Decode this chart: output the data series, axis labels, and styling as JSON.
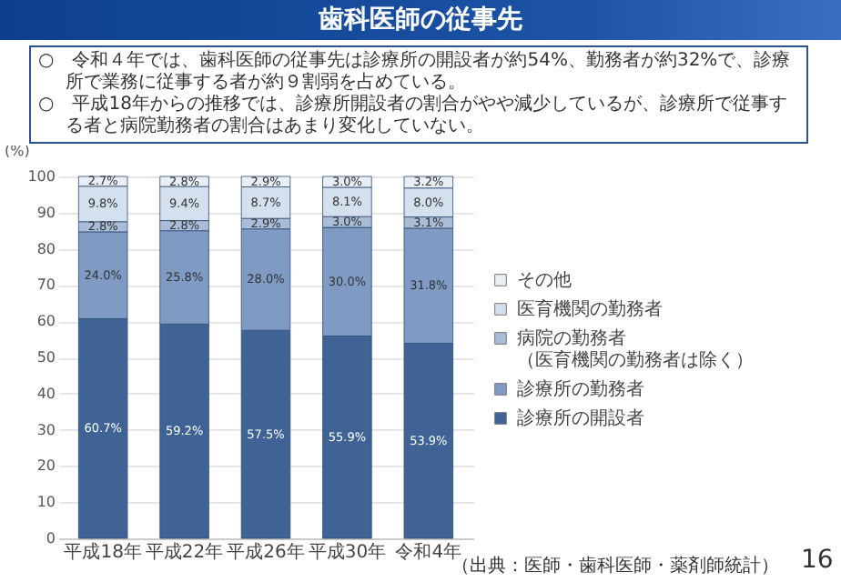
{
  "chart_data": {
    "type": "bar",
    "title": "歯科医師の従事先",
    "stacked": true,
    "legend": "right",
    "grid": "y",
    "ylabel": "(%)",
    "ylim": [
      0,
      100
    ],
    "yticks": [
      0,
      10,
      20,
      30,
      40,
      50,
      60,
      70,
      80,
      90,
      100
    ],
    "categories": [
      "平成18年",
      "平成22年",
      "平成26年",
      "平成30年",
      "令和4年"
    ],
    "series": [
      {
        "name": "診療所の開設者",
        "color": "#3f6394",
        "values": [
          60.7,
          59.2,
          57.5,
          55.9,
          53.9
        ],
        "value_labels": [
          "60.7%",
          "59.2%",
          "57.5%",
          "55.9%",
          "53.9%"
        ]
      },
      {
        "name": "診療所の勤務者",
        "color": "#7f9bc3",
        "values": [
          24.0,
          25.8,
          28.0,
          30.0,
          31.8
        ],
        "value_labels": [
          "24.0%",
          "25.8%",
          "28.0%",
          "30.0%",
          "31.8%"
        ]
      },
      {
        "name": "病院の勤務者（医育機関の勤務者は除く）",
        "color": "#a9bcd8",
        "values": [
          2.8,
          2.8,
          2.9,
          3.0,
          3.1
        ],
        "value_labels": [
          "2.8%",
          "2.8%",
          "2.9%",
          "3.0%",
          "3.1%"
        ]
      },
      {
        "name": "医育機関の勤務者",
        "color": "#d5e0ee",
        "values": [
          9.8,
          9.4,
          8.7,
          8.1,
          8.0
        ],
        "value_labels": [
          "9.8%",
          "9.4%",
          "8.7%",
          "8.1%",
          "8.0%"
        ]
      },
      {
        "name": "その他",
        "color": "#e9eef5",
        "values": [
          2.7,
          2.8,
          2.9,
          3.0,
          3.2
        ],
        "value_labels": [
          "2.7%",
          "2.8%",
          "2.9%",
          "3.0%",
          "3.2%"
        ]
      }
    ],
    "annotations": [
      "○　令和４年では、歯科医師の従事先は診療所の開設者が約54%、勤務者が約32%で、診療所で業務に従事する者が約９割弱を占めている。",
      "○　平成18年からの推移では、診療所開設者の割合がやや減少しているが、診療所で従事する者と病院勤務者の割合はあまり変化していない。",
      "（出典：医師・歯科医師・薬剤師統計）",
      "16"
    ]
  }
}
